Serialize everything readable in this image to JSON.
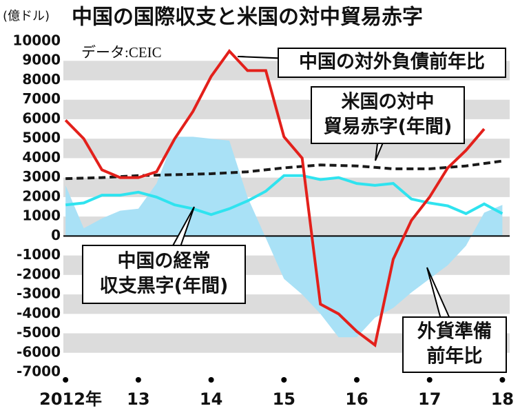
{
  "chart_data": {
    "type": "line",
    "title": "中国の国際収支と米国の対中貿易赤字",
    "y_label": "(億ドル)",
    "source": "データ:CEIC",
    "xlim": [
      2011.97,
      2018.1
    ],
    "xticks": [
      {
        "value": 2012,
        "label": "2012年"
      },
      {
        "value": 2013,
        "label": "13"
      },
      {
        "value": 2014,
        "label": "14"
      },
      {
        "value": 2015,
        "label": "15"
      },
      {
        "value": 2016,
        "label": "16"
      },
      {
        "value": 2017,
        "label": "17"
      },
      {
        "value": 2018,
        "label": "18"
      }
    ],
    "ylim": [
      -7000,
      10000
    ],
    "yticks": [
      -7000,
      -6000,
      -5000,
      -4000,
      -3000,
      -2000,
      -1000,
      0,
      1000,
      2000,
      3000,
      4000,
      5000,
      6000,
      7000,
      8000,
      9000,
      10000
    ],
    "grid": "bands",
    "series": [
      {
        "label": [
          "外貨準備",
          "前年比"
        ],
        "style": "area",
        "color": "#a9e1f6",
        "x": [
          2012,
          2012.25,
          2012.5,
          2012.75,
          2013,
          2013.25,
          2013.5,
          2013.75,
          2014,
          2014.25,
          2014.5,
          2014.75,
          2015,
          2015.25,
          2015.5,
          2015.75,
          2016,
          2016.25,
          2016.5,
          2016.75,
          2017,
          2017.25,
          2017.5,
          2017.75,
          2018
        ],
        "values": [
          2600,
          400,
          900,
          1300,
          1400,
          2700,
          5100,
          5100,
          5000,
          4900,
          2000,
          -100,
          -2200,
          -3000,
          -4000,
          -5200,
          -5200,
          -4200,
          -3700,
          -2900,
          -2200,
          -1500,
          -500,
          1200,
          1600
        ]
      },
      {
        "label": [
          "中国の経常",
          "収支黒字(年間)"
        ],
        "style": "line",
        "color": "#2fe3ef",
        "x": [
          2012,
          2012.25,
          2012.5,
          2012.75,
          2013,
          2013.25,
          2013.5,
          2013.75,
          2014,
          2014.25,
          2014.5,
          2014.75,
          2015,
          2015.25,
          2015.5,
          2015.75,
          2016,
          2016.25,
          2016.5,
          2016.75,
          2017,
          2017.25,
          2017.5,
          2017.75,
          2018
        ],
        "values": [
          1600,
          1700,
          2100,
          2100,
          2250,
          2000,
          1600,
          1400,
          1100,
          1400,
          1800,
          2300,
          3100,
          3100,
          2900,
          3000,
          2700,
          2600,
          2700,
          1900,
          1700,
          1550,
          1150,
          1650,
          1150
        ]
      },
      {
        "label": [
          "米国の対中",
          "貿易赤字(年間)"
        ],
        "style": "dashed",
        "color": "#1a1a1a",
        "x": [
          2012,
          2012.5,
          2013,
          2013.5,
          2014,
          2014.5,
          2015,
          2015.5,
          2016,
          2016.5,
          2017,
          2017.5,
          2018
        ],
        "values": [
          2950,
          3000,
          3100,
          3150,
          3200,
          3300,
          3500,
          3650,
          3600,
          3450,
          3450,
          3600,
          3850
        ]
      },
      {
        "label": [
          "中国の対外負債前年比"
        ],
        "style": "line",
        "color": "#e3201b",
        "x": [
          2012,
          2012.25,
          2012.5,
          2012.75,
          2013,
          2013.25,
          2013.5,
          2013.75,
          2014,
          2014.25,
          2014.5,
          2014.75,
          2015,
          2015.25,
          2015.5,
          2015.75,
          2016,
          2016.25,
          2016.5,
          2016.75,
          2017,
          2017.25,
          2017.5,
          2017.75
        ],
        "values": [
          5950,
          5000,
          3400,
          3000,
          3000,
          3300,
          5000,
          6400,
          8200,
          9500,
          8500,
          8500,
          5100,
          4000,
          -3500,
          -4000,
          -4900,
          -5600,
          -1200,
          800,
          2000,
          3500,
          4400,
          5500
        ]
      }
    ]
  }
}
